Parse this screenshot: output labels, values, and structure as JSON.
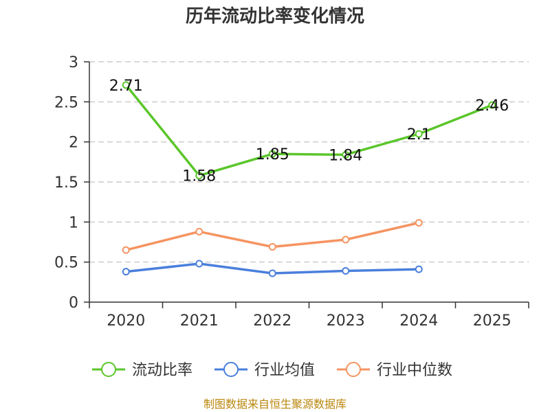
{
  "chart_data": {
    "type": "line",
    "title": "历年流动比率变化情况",
    "categories": [
      "2020",
      "2021",
      "2022",
      "2023",
      "2024",
      "2025"
    ],
    "ylim": [
      0,
      3
    ],
    "yticks": [
      "0",
      "0.5",
      "1",
      "1.5",
      "2",
      "2.5",
      "3"
    ],
    "grid": true,
    "legend_position": "bottom",
    "series": [
      {
        "name": "流动比率",
        "color": "#5ac62a",
        "values": [
          2.71,
          1.58,
          1.85,
          1.84,
          2.1,
          2.46
        ],
        "labels": [
          "2.71",
          "1.58",
          "1.85",
          "1.84",
          "2.1",
          "2.46"
        ]
      },
      {
        "name": "行业均值",
        "color": "#4a7fdc",
        "values": [
          0.38,
          0.48,
          0.36,
          0.39,
          0.41,
          null
        ]
      },
      {
        "name": "行业中位数",
        "color": "#f59461",
        "values": [
          0.65,
          0.88,
          0.69,
          0.78,
          0.99,
          null
        ]
      }
    ]
  },
  "source": "制图数据来自恒生聚源数据库"
}
